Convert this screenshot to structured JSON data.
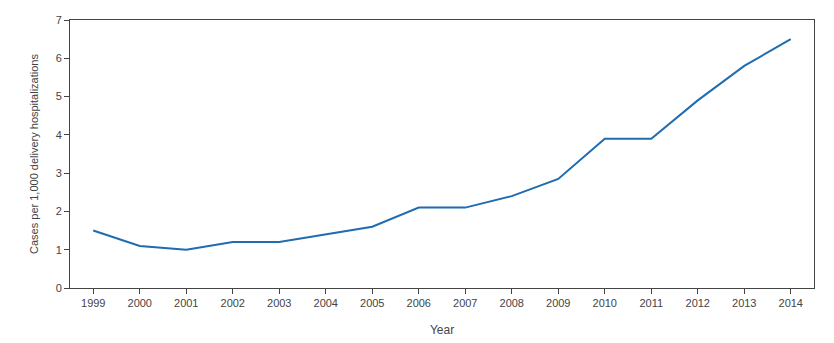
{
  "chart_data": {
    "type": "line",
    "x": [
      1999,
      2000,
      2001,
      2002,
      2003,
      2004,
      2005,
      2006,
      2007,
      2008,
      2009,
      2010,
      2011,
      2012,
      2013,
      2014
    ],
    "values": [
      1.5,
      1.1,
      1.0,
      1.2,
      1.2,
      1.4,
      1.6,
      2.1,
      2.1,
      2.4,
      2.85,
      3.9,
      3.9,
      4.9,
      5.8,
      6.5
    ],
    "color": "#1f6cb0",
    "xlabel": "Year",
    "ylabel": "Cases per 1,000 delivery hospitalizations",
    "xlim": [
      1998.5,
      2014.5
    ],
    "xticks": [
      1999,
      2000,
      2001,
      2002,
      2003,
      2004,
      2005,
      2006,
      2007,
      2008,
      2009,
      2010,
      2011,
      2012,
      2013,
      2014
    ],
    "ylim": [
      0,
      7
    ],
    "yticks": [
      0,
      1,
      2,
      3,
      4,
      5,
      6,
      7
    ],
    "grid": false
  }
}
